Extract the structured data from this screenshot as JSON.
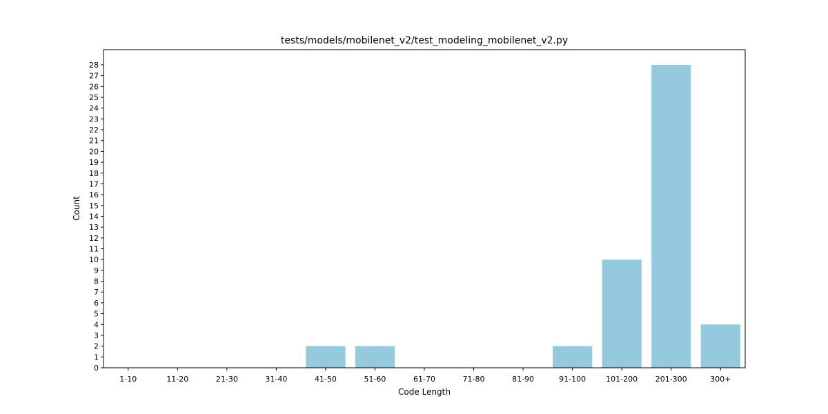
{
  "chart_data": {
    "type": "bar",
    "title": "tests/models/mobilenet_v2/test_modeling_mobilenet_v2.py",
    "xlabel": "Code Length",
    "ylabel": "Count",
    "categories": [
      "1-10",
      "11-20",
      "21-30",
      "31-40",
      "41-50",
      "51-60",
      "61-70",
      "71-80",
      "81-90",
      "91-100",
      "101-200",
      "201-300",
      "300+"
    ],
    "values": [
      0,
      0,
      0,
      0,
      2,
      2,
      0,
      0,
      0,
      2,
      10,
      28,
      4
    ],
    "ylim": [
      0,
      29.4
    ],
    "yticks": [
      0,
      1,
      2,
      3,
      4,
      5,
      6,
      7,
      8,
      9,
      10,
      11,
      12,
      13,
      14,
      15,
      16,
      17,
      18,
      19,
      20,
      21,
      22,
      23,
      24,
      25,
      26,
      27,
      28
    ],
    "grid": false,
    "bar_color": "#95c9de"
  }
}
